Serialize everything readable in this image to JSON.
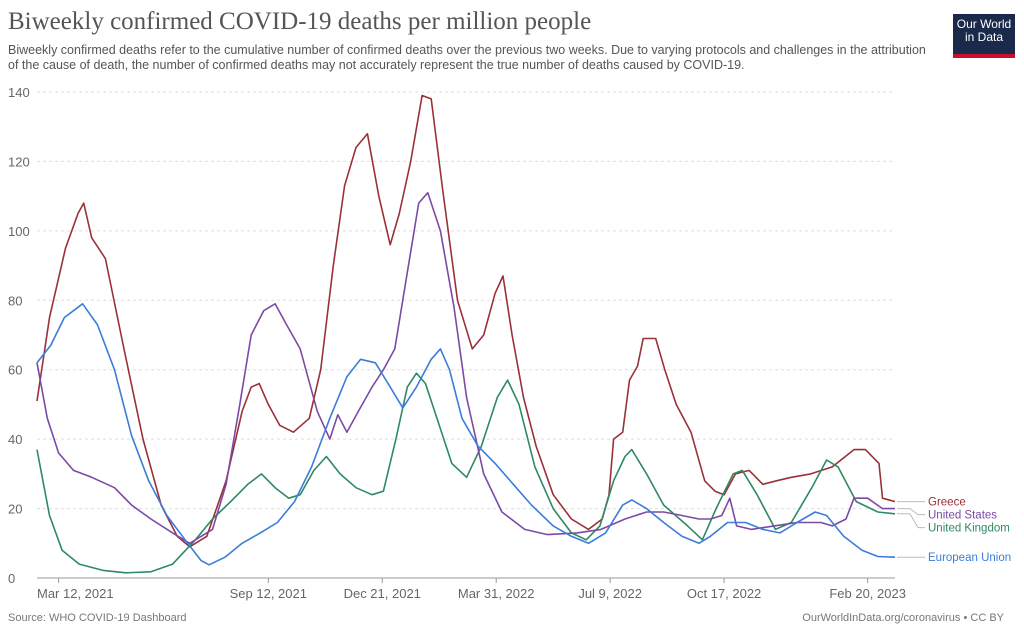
{
  "header": {
    "title": "Biweekly confirmed COVID-19 deaths per million people",
    "subtitle": "Biweekly confirmed deaths refer to the cumulative number of confirmed deaths over the previous two weeks. Due to varying protocols and challenges in the attribution of the cause of death, the number of confirmed deaths may not accurately represent the true number of deaths caused by COVID-19.",
    "logo_line1": "Our World",
    "logo_line2": "in Data"
  },
  "footer": {
    "source": "Source: WHO COVID-19 Dashboard",
    "credit": "OurWorldInData.org/coronavirus • CC BY"
  },
  "colors": {
    "Greece": "#9a3138",
    "United Kingdom": "#2e8a62",
    "United States": "#7b4aa6",
    "European Union": "#3b7dd8"
  },
  "chart_data": {
    "type": "line",
    "title": "Biweekly confirmed COVID-19 deaths per million people",
    "ylim": [
      0,
      140
    ],
    "y_ticks": [
      0,
      20,
      40,
      60,
      80,
      100,
      120,
      140
    ],
    "x_range": [
      "2021-02-21",
      "2023-03-16"
    ],
    "x_ticks": [
      {
        "date": "2021-03-12",
        "label": "Mar 12, 2021"
      },
      {
        "date": "2021-09-12",
        "label": "Sep 12, 2021"
      },
      {
        "date": "2021-12-21",
        "label": "Dec 21, 2021"
      },
      {
        "date": "2022-03-31",
        "label": "Mar 31, 2022"
      },
      {
        "date": "2022-07-09",
        "label": "Jul 9, 2022"
      },
      {
        "date": "2022-10-17",
        "label": "Oct 17, 2022"
      },
      {
        "date": "2023-02-20",
        "label": "Feb 20, 2023"
      }
    ],
    "grid": true,
    "legend_position": "right",
    "series": [
      {
        "name": "Greece",
        "points": [
          [
            "2021-02-21",
            51
          ],
          [
            "2021-03-04",
            75
          ],
          [
            "2021-03-18",
            95
          ],
          [
            "2021-03-29",
            105
          ],
          [
            "2021-04-03",
            108
          ],
          [
            "2021-04-10",
            98
          ],
          [
            "2021-04-22",
            92
          ],
          [
            "2021-05-09",
            65
          ],
          [
            "2021-05-25",
            40
          ],
          [
            "2021-06-10",
            21
          ],
          [
            "2021-06-24",
            12
          ],
          [
            "2021-07-05",
            9
          ],
          [
            "2021-07-20",
            12
          ],
          [
            "2021-08-06",
            28
          ],
          [
            "2021-08-20",
            48
          ],
          [
            "2021-08-28",
            55
          ],
          [
            "2021-09-04",
            56
          ],
          [
            "2021-09-12",
            50
          ],
          [
            "2021-09-22",
            44
          ],
          [
            "2021-10-04",
            42
          ],
          [
            "2021-10-18",
            46
          ],
          [
            "2021-10-28",
            60
          ],
          [
            "2021-11-08",
            90
          ],
          [
            "2021-11-18",
            113
          ],
          [
            "2021-11-28",
            124
          ],
          [
            "2021-12-08",
            128
          ],
          [
            "2021-12-18",
            110
          ],
          [
            "2021-12-28",
            96
          ],
          [
            "2022-01-05",
            105
          ],
          [
            "2022-01-15",
            120
          ],
          [
            "2022-01-25",
            139
          ],
          [
            "2022-02-02",
            138
          ],
          [
            "2022-02-12",
            112
          ],
          [
            "2022-02-25",
            80
          ],
          [
            "2022-03-10",
            66
          ],
          [
            "2022-03-20",
            70
          ],
          [
            "2022-03-30",
            82
          ],
          [
            "2022-04-06",
            87
          ],
          [
            "2022-04-14",
            70
          ],
          [
            "2022-04-24",
            52
          ],
          [
            "2022-05-05",
            38
          ],
          [
            "2022-05-20",
            24
          ],
          [
            "2022-06-05",
            17
          ],
          [
            "2022-06-20",
            14
          ],
          [
            "2022-07-02",
            17
          ],
          [
            "2022-07-08",
            24
          ],
          [
            "2022-07-12",
            40
          ],
          [
            "2022-07-20",
            42
          ],
          [
            "2022-07-26",
            57
          ],
          [
            "2022-08-02",
            61
          ],
          [
            "2022-08-07",
            69
          ],
          [
            "2022-08-18",
            69
          ],
          [
            "2022-08-26",
            60
          ],
          [
            "2022-09-05",
            50
          ],
          [
            "2022-09-18",
            42
          ],
          [
            "2022-09-30",
            28
          ],
          [
            "2022-10-09",
            25
          ],
          [
            "2022-10-17",
            24
          ],
          [
            "2022-10-27",
            30
          ],
          [
            "2022-11-08",
            31
          ],
          [
            "2022-11-20",
            27
          ],
          [
            "2022-12-02",
            28
          ],
          [
            "2022-12-15",
            29
          ],
          [
            "2023-01-01",
            30
          ],
          [
            "2023-01-20",
            32
          ],
          [
            "2023-02-08",
            37
          ],
          [
            "2023-02-18",
            37
          ],
          [
            "2023-03-02",
            33
          ],
          [
            "2023-03-05",
            23
          ],
          [
            "2023-03-16",
            22
          ]
        ]
      },
      {
        "name": "United Kingdom",
        "points": [
          [
            "2021-02-21",
            37
          ],
          [
            "2021-03-04",
            18
          ],
          [
            "2021-03-15",
            8
          ],
          [
            "2021-03-30",
            4
          ],
          [
            "2021-04-20",
            2.2
          ],
          [
            "2021-05-10",
            1.5
          ],
          [
            "2021-06-01",
            1.8
          ],
          [
            "2021-06-20",
            4
          ],
          [
            "2021-07-10",
            11
          ],
          [
            "2021-07-25",
            17
          ],
          [
            "2021-08-10",
            22
          ],
          [
            "2021-08-25",
            27
          ],
          [
            "2021-09-06",
            30
          ],
          [
            "2021-09-18",
            26
          ],
          [
            "2021-09-30",
            23
          ],
          [
            "2021-10-10",
            24
          ],
          [
            "2021-10-22",
            31
          ],
          [
            "2021-11-02",
            35
          ],
          [
            "2021-11-14",
            30
          ],
          [
            "2021-11-28",
            26
          ],
          [
            "2021-12-12",
            24
          ],
          [
            "2021-12-22",
            25
          ],
          [
            "2022-01-02",
            40
          ],
          [
            "2022-01-12",
            55
          ],
          [
            "2022-01-20",
            59
          ],
          [
            "2022-01-28",
            56
          ],
          [
            "2022-02-08",
            45
          ],
          [
            "2022-02-20",
            33
          ],
          [
            "2022-03-05",
            29
          ],
          [
            "2022-03-18",
            38
          ],
          [
            "2022-04-01",
            52
          ],
          [
            "2022-04-10",
            57
          ],
          [
            "2022-04-20",
            50
          ],
          [
            "2022-05-04",
            32
          ],
          [
            "2022-05-20",
            20
          ],
          [
            "2022-06-05",
            13
          ],
          [
            "2022-06-18",
            11
          ],
          [
            "2022-06-30",
            15
          ],
          [
            "2022-07-12",
            28
          ],
          [
            "2022-07-22",
            35
          ],
          [
            "2022-07-28",
            37
          ],
          [
            "2022-08-10",
            30
          ],
          [
            "2022-08-25",
            21
          ],
          [
            "2022-09-15",
            15
          ],
          [
            "2022-09-28",
            11
          ],
          [
            "2022-10-10",
            20
          ],
          [
            "2022-10-25",
            30
          ],
          [
            "2022-11-02",
            31
          ],
          [
            "2022-11-15",
            24
          ],
          [
            "2022-12-01",
            14
          ],
          [
            "2022-12-15",
            16
          ],
          [
            "2023-01-02",
            26
          ],
          [
            "2023-01-15",
            34
          ],
          [
            "2023-01-25",
            32
          ],
          [
            "2023-02-10",
            22
          ],
          [
            "2023-03-01",
            19
          ],
          [
            "2023-03-16",
            18.5
          ]
        ]
      },
      {
        "name": "United States",
        "points": [
          [
            "2021-02-21",
            62
          ],
          [
            "2021-03-02",
            46
          ],
          [
            "2021-03-12",
            36
          ],
          [
            "2021-03-25",
            31
          ],
          [
            "2021-04-10",
            29
          ],
          [
            "2021-04-30",
            26
          ],
          [
            "2021-05-15",
            21
          ],
          [
            "2021-06-01",
            17
          ],
          [
            "2021-06-20",
            13
          ],
          [
            "2021-07-05",
            10
          ],
          [
            "2021-07-25",
            14
          ],
          [
            "2021-08-06",
            27
          ],
          [
            "2021-08-18",
            50
          ],
          [
            "2021-08-28",
            70
          ],
          [
            "2021-09-08",
            77
          ],
          [
            "2021-09-18",
            79
          ],
          [
            "2021-09-28",
            73
          ],
          [
            "2021-10-10",
            66
          ],
          [
            "2021-10-25",
            48
          ],
          [
            "2021-11-05",
            40
          ],
          [
            "2021-11-12",
            47
          ],
          [
            "2021-11-20",
            42
          ],
          [
            "2021-11-30",
            48
          ],
          [
            "2021-12-12",
            55
          ],
          [
            "2021-12-22",
            60
          ],
          [
            "2022-01-01",
            66
          ],
          [
            "2022-01-12",
            88
          ],
          [
            "2022-01-22",
            108
          ],
          [
            "2022-01-30",
            111
          ],
          [
            "2022-02-10",
            100
          ],
          [
            "2022-02-22",
            78
          ],
          [
            "2022-03-05",
            52
          ],
          [
            "2022-03-20",
            30
          ],
          [
            "2022-04-05",
            19
          ],
          [
            "2022-04-25",
            14
          ],
          [
            "2022-05-15",
            12.5
          ],
          [
            "2022-06-10",
            13
          ],
          [
            "2022-07-01",
            14
          ],
          [
            "2022-07-22",
            17
          ],
          [
            "2022-08-10",
            19
          ],
          [
            "2022-08-25",
            19
          ],
          [
            "2022-09-10",
            18
          ],
          [
            "2022-09-25",
            17
          ],
          [
            "2022-10-05",
            17
          ],
          [
            "2022-10-15",
            18
          ],
          [
            "2022-10-22",
            23
          ],
          [
            "2022-10-28",
            15
          ],
          [
            "2022-11-10",
            14
          ],
          [
            "2022-11-30",
            15
          ],
          [
            "2022-12-20",
            16
          ],
          [
            "2023-01-10",
            16
          ],
          [
            "2023-01-20",
            15
          ],
          [
            "2023-02-01",
            17
          ],
          [
            "2023-02-08",
            23
          ],
          [
            "2023-02-20",
            23
          ],
          [
            "2023-03-05",
            20
          ],
          [
            "2023-03-16",
            20
          ]
        ]
      },
      {
        "name": "European Union",
        "points": [
          [
            "2021-02-21",
            62
          ],
          [
            "2021-03-05",
            67
          ],
          [
            "2021-03-17",
            75
          ],
          [
            "2021-04-02",
            79
          ],
          [
            "2021-04-15",
            73
          ],
          [
            "2021-04-30",
            60
          ],
          [
            "2021-05-15",
            41
          ],
          [
            "2021-05-30",
            28
          ],
          [
            "2021-06-15",
            18
          ],
          [
            "2021-07-01",
            11
          ],
          [
            "2021-07-15",
            5
          ],
          [
            "2021-07-22",
            3.8
          ],
          [
            "2021-08-05",
            6
          ],
          [
            "2021-08-20",
            10
          ],
          [
            "2021-09-05",
            13
          ],
          [
            "2021-09-20",
            16
          ],
          [
            "2021-10-05",
            22
          ],
          [
            "2021-10-20",
            32
          ],
          [
            "2021-11-05",
            46
          ],
          [
            "2021-11-20",
            58
          ],
          [
            "2021-12-02",
            63
          ],
          [
            "2021-12-15",
            62
          ],
          [
            "2021-12-28",
            55
          ],
          [
            "2022-01-08",
            49
          ],
          [
            "2022-01-20",
            55
          ],
          [
            "2022-02-02",
            63
          ],
          [
            "2022-02-10",
            66
          ],
          [
            "2022-02-18",
            60
          ],
          [
            "2022-03-01",
            46
          ],
          [
            "2022-03-15",
            38
          ],
          [
            "2022-03-30",
            33
          ],
          [
            "2022-04-15",
            27
          ],
          [
            "2022-05-01",
            21
          ],
          [
            "2022-05-20",
            15
          ],
          [
            "2022-06-05",
            12
          ],
          [
            "2022-06-20",
            10
          ],
          [
            "2022-07-05",
            13
          ],
          [
            "2022-07-20",
            21
          ],
          [
            "2022-07-28",
            22.5
          ],
          [
            "2022-08-10",
            20
          ],
          [
            "2022-08-25",
            16
          ],
          [
            "2022-09-10",
            12
          ],
          [
            "2022-09-25",
            10
          ],
          [
            "2022-10-05",
            12
          ],
          [
            "2022-10-20",
            16
          ],
          [
            "2022-11-05",
            16
          ],
          [
            "2022-11-20",
            14
          ],
          [
            "2022-12-05",
            13
          ],
          [
            "2022-12-20",
            16
          ],
          [
            "2023-01-05",
            19
          ],
          [
            "2023-01-15",
            18
          ],
          [
            "2023-01-30",
            12
          ],
          [
            "2023-02-15",
            8
          ],
          [
            "2023-03-01",
            6.2
          ],
          [
            "2023-03-16",
            6
          ]
        ]
      }
    ],
    "legend_labels": [
      {
        "series": "Greece",
        "label": "Greece"
      },
      {
        "series": "United Kingdom",
        "label": "United Kingdom"
      },
      {
        "series": "United States",
        "label": "United States"
      },
      {
        "series": "European Union",
        "label": "European Union"
      }
    ]
  }
}
